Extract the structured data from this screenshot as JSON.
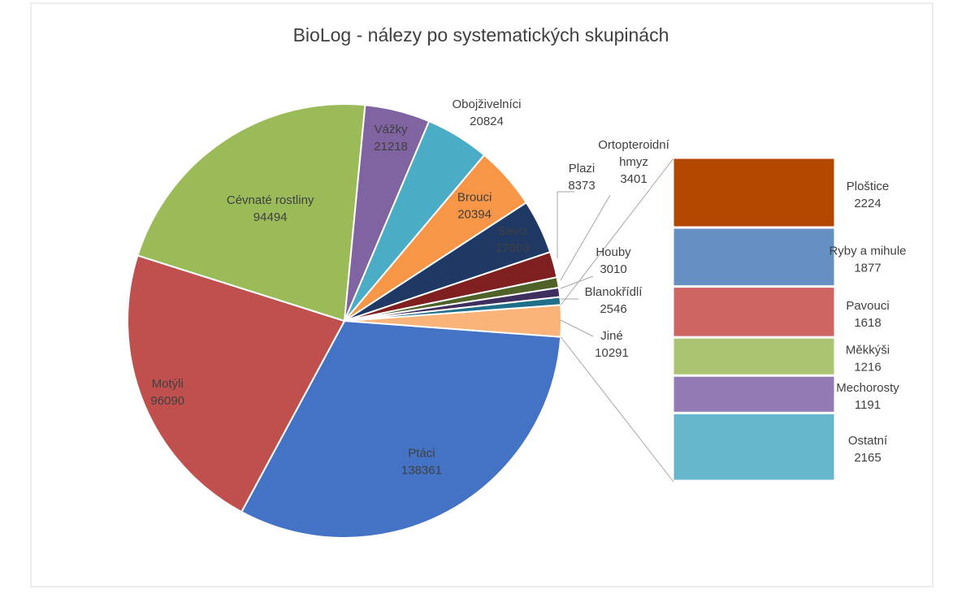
{
  "chart_data": {
    "type": "pie",
    "subtype": "bar-of-pie",
    "title": "BioLog  - nálezy po systematických skupinách",
    "main_slices": [
      {
        "label": "Ptáci",
        "value": 138361,
        "color": "#4472C4"
      },
      {
        "label": "Motýli",
        "value": 96090,
        "color": "#C0504D"
      },
      {
        "label": "Cévnaté rostliny",
        "value": 94494,
        "color": "#9BBB59"
      },
      {
        "label": "Vážky",
        "value": 21218,
        "color": "#8064A2"
      },
      {
        "label": "Obojživelníci",
        "value": 20824,
        "color": "#4BACC6"
      },
      {
        "label": "Brouci",
        "value": 20394,
        "color": "#F79646"
      },
      {
        "label": "Savci",
        "value": 17603,
        "color": "#1F3864"
      },
      {
        "label": "Plazi",
        "value": 8373,
        "color": "#7F1F1F"
      },
      {
        "label": "Ortopteroidní hmyz",
        "value": 3401,
        "color": "#4F6228"
      },
      {
        "label": "Houby",
        "value": 3010,
        "color": "#3F2F5F"
      },
      {
        "label": "Blanokřídlí",
        "value": 2546,
        "color": "#1F6F8B"
      },
      {
        "label": "Jiné",
        "value": 10291,
        "color": "#FAB47A"
      }
    ],
    "other_breakdown": [
      {
        "label": "Ploštice",
        "value": 2224,
        "color": "#B34700"
      },
      {
        "label": "Ryby a mihule",
        "value": 1877,
        "color": "#6690C4"
      },
      {
        "label": "Pavouci",
        "value": 1618,
        "color": "#CD6663"
      },
      {
        "label": "Měkkýši",
        "value": 1216,
        "color": "#ABC472"
      },
      {
        "label": "Mechorosty",
        "value": 1191,
        "color": "#937AB4"
      },
      {
        "label": "Ostatní",
        "value": 2165,
        "color": "#66B7CC"
      }
    ],
    "legend": "none"
  }
}
